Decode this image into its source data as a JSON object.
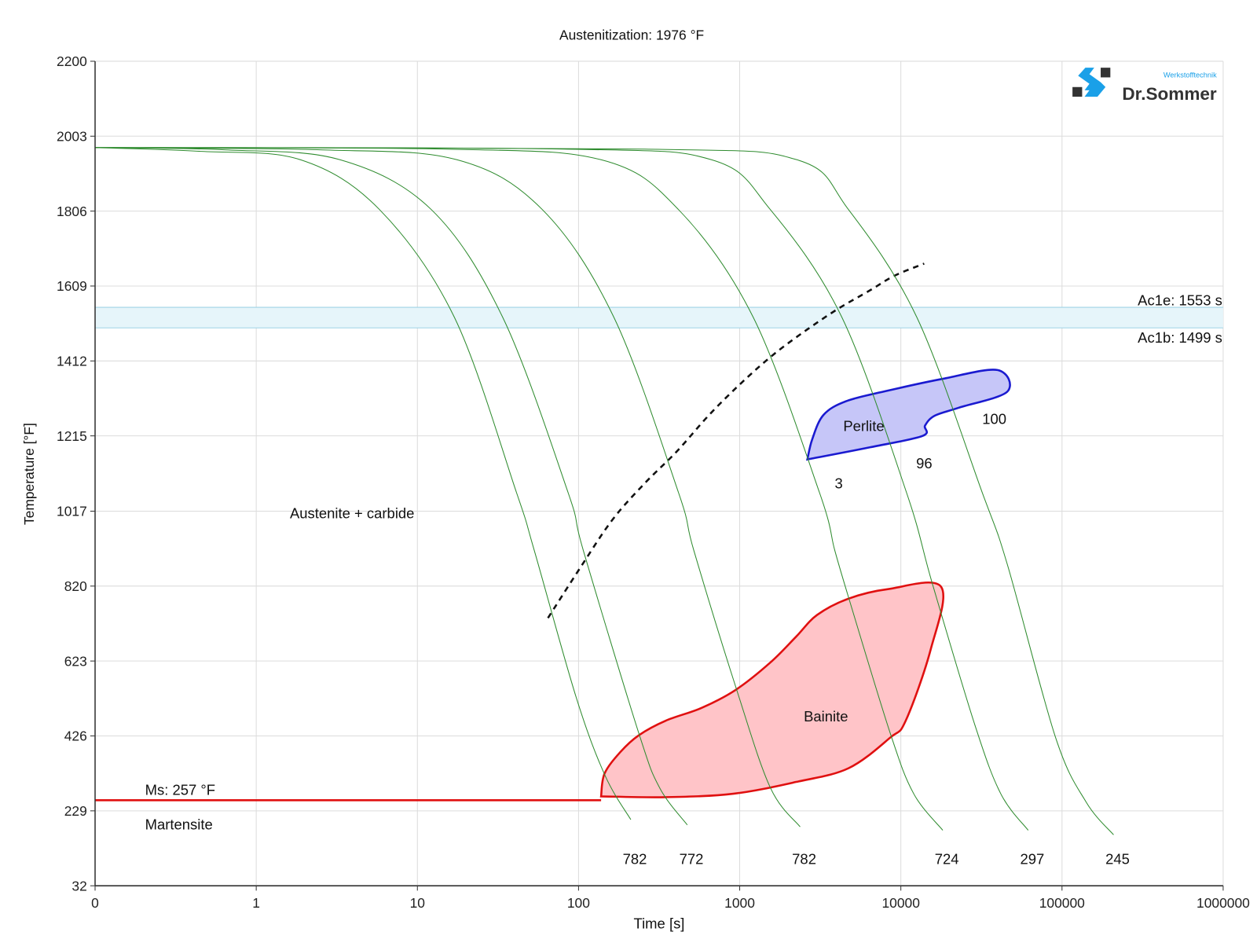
{
  "chart_data": {
    "type": "line",
    "title": "Austenitization: 1976 °F",
    "xlabel": "Time [s]",
    "ylabel": "Temperature [°F]",
    "xscale": "log",
    "xlim": [
      0.1,
      1000000
    ],
    "ylim": [
      32,
      2200
    ],
    "grid": true,
    "x_ticks": [
      {
        "value": 0.1,
        "label": "0"
      },
      {
        "value": 1,
        "label": "1"
      },
      {
        "value": 10,
        "label": "10"
      },
      {
        "value": 100,
        "label": "100"
      },
      {
        "value": 1000,
        "label": "1000"
      },
      {
        "value": 10000,
        "label": "10000"
      },
      {
        "value": 100000,
        "label": "100000"
      },
      {
        "value": 1000000,
        "label": "1000000"
      }
    ],
    "y_ticks": [
      2200,
      2003,
      1806,
      1609,
      1412,
      1215,
      1017,
      820,
      623,
      426,
      229,
      32
    ],
    "colors": {
      "cooling": "#2e8b2e",
      "bainite_line": "#e01010",
      "bainite_fill": "#ffc4c8",
      "perlite_line": "#1a1ad0",
      "perlite_fill": "#c6c6f8",
      "ac1_band": "#e6f5fa",
      "ac1_line": "#9fd3e6",
      "dashed": "#111111"
    },
    "cooling_curves": [
      {
        "end_label": "782",
        "t": [
          0.1,
          0.457,
          1.88,
          5.82,
          17.0,
          41.2,
          53.1,
          96.6,
          146,
          211
        ],
        "T": [
          1973,
          1963,
          1941,
          1810,
          1526,
          1066,
          914,
          528,
          322,
          206
        ]
      },
      {
        "end_label": "772",
        "t": [
          0.1,
          0.646,
          3.31,
          12.2,
          33.9,
          86.1,
          107,
          237,
          320,
          473
        ],
        "T": [
          1973,
          1967,
          1941,
          1810,
          1526,
          1066,
          914,
          432,
          288,
          192
        ]
      },
      {
        "end_label": "782",
        "t": [
          0.1,
          2.57,
          17.6,
          59.6,
          166,
          417,
          519,
          955,
          1549,
          2371
        ],
        "T": [
          1973,
          1967,
          1941,
          1810,
          1526,
          1066,
          914,
          549,
          290,
          187
        ]
      },
      {
        "end_label": "724",
        "t": [
          0.1,
          14.5,
          138,
          417,
          1216,
          3126,
          3890,
          4732,
          8610,
          12020,
          18200
        ],
        "T": [
          1973,
          1969,
          1941,
          1810,
          1526,
          1066,
          914,
          791,
          432,
          274,
          178
        ]
      },
      {
        "end_label": "297",
        "t": [
          0.1,
          81.3,
          668,
          1549,
          4315,
          10840,
          15670,
          28840,
          41690,
          61660
        ],
        "T": [
          1973,
          1969,
          1941,
          1810,
          1526,
          1066,
          827,
          454,
          274,
          178
        ]
      },
      {
        "end_label": "245",
        "t": [
          0.1,
          257,
          2265,
          4732,
          12590,
          31990,
          45710,
          91200,
          141250,
          208930
        ],
        "T": [
          1973,
          1969,
          1941,
          1810,
          1526,
          1066,
          878,
          422,
          252,
          166
        ]
      }
    ],
    "ac1": {
      "Ac1e_label": "Ac1e: 1553 s",
      "Ac1e": 1553,
      "Ac1b_label": "Ac1b: 1499 s",
      "Ac1b": 1499
    },
    "ms": {
      "label": "Ms: 257 °F",
      "T": 257,
      "t_end": 138
    },
    "dashed_curve": {
      "t": [
        64.6,
        102,
        162,
        257,
        407,
        646,
        1023,
        1622,
        2570,
        4074,
        6457,
        9120,
        13960
      ],
      "T": [
        736,
        867,
        994,
        1090,
        1174,
        1270,
        1354,
        1429,
        1492,
        1549,
        1598,
        1636,
        1668
      ]
    },
    "regions": {
      "bainite": {
        "label": "Bainite",
        "t": [
          138,
          145,
          182,
          237,
          347,
          582,
          944,
          1549,
          2239,
          3020,
          4732,
          8318,
          17780,
          15310,
          10720,
          8610,
          4732,
          2239,
          912,
          347,
          138
        ],
        "T": [
          267,
          327,
          384,
          428,
          466,
          500,
          547,
          619,
          687,
          744,
          787,
          812,
          818,
          653,
          466,
          422,
          341,
          305,
          274,
          265,
          267
        ]
      },
      "perlite": {
        "label": "Perlite",
        "t": [
          2630,
          2818,
          3311,
          4571,
          8128,
          18200,
          39810,
          45710,
          22910,
          16220,
          14130,
          13650,
          6457,
          2630
        ],
        "T": [
          1153,
          1206,
          1270,
          1306,
          1333,
          1365,
          1388,
          1331,
          1289,
          1268,
          1242,
          1215,
          1185,
          1153
        ]
      },
      "austenite_label": "Austenite + carbide",
      "martensite_label": "Martensite"
    },
    "perlite_percent_labels": [
      "3",
      "96",
      "100"
    ]
  },
  "logo": {
    "brand": "Dr.Sommer",
    "sub": "Werkstofftechnik"
  }
}
